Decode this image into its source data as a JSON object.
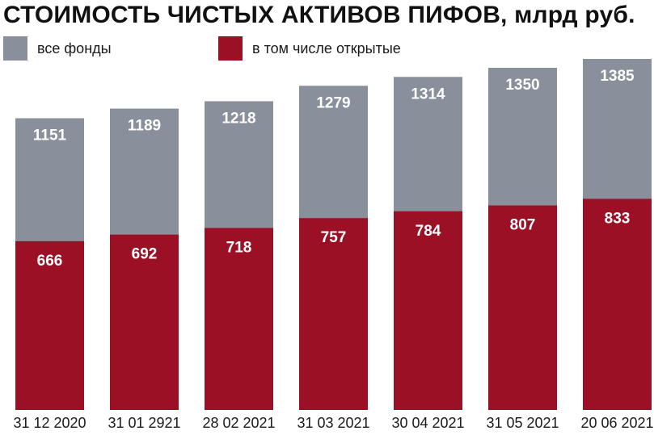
{
  "colors": {
    "all_funds": "#8a909b",
    "open_funds": "#9c1026",
    "background": "#ffffff"
  },
  "chart_data": {
    "type": "bar",
    "title": "СТОИМОСТЬ ЧИСТЫХ АКТИВОВ ПИФОВ, млрд руб.",
    "legend_position": "top-left",
    "grid": false,
    "categories": [
      "31 12 2020",
      "31 01 2921",
      "28 02 2021",
      "31 03 2021",
      "30 04 2021",
      "31 05 2021",
      "20 06 2021"
    ],
    "series": [
      {
        "name": "все фонды",
        "values": [
          1151,
          1189,
          1218,
          1279,
          1314,
          1350,
          1385
        ]
      },
      {
        "name": "в том числе открытые",
        "values": [
          666,
          692,
          718,
          757,
          784,
          807,
          833
        ]
      }
    ],
    "ylim": [
      0,
      1385
    ]
  }
}
